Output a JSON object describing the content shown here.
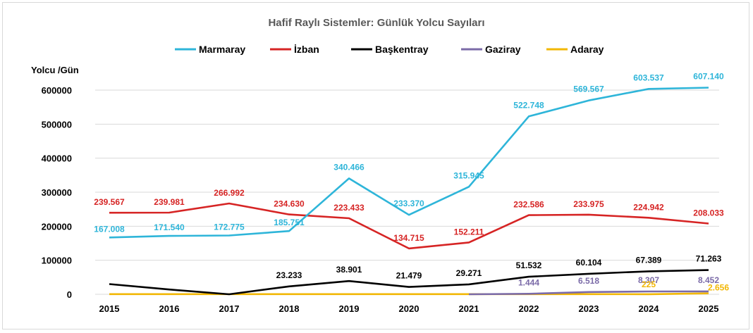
{
  "chart_data": {
    "type": "line",
    "title": "Hafif Raylı Sistemler: Günlük Yolcu Sayıları",
    "ylabel": "Yolcu /Gün",
    "xlabel": "",
    "ylim": [
      0,
      600000
    ],
    "yticks": [
      0,
      100000,
      200000,
      300000,
      400000,
      500000,
      600000
    ],
    "ytick_labels": [
      "0",
      "100000",
      "200000",
      "300000",
      "400000",
      "500000",
      "600000"
    ],
    "categories": [
      "2015",
      "2016",
      "2017",
      "2018",
      "2019",
      "2020",
      "2021",
      "2022",
      "2023",
      "2024",
      "2025"
    ],
    "grid": true,
    "legend_position": "top",
    "series": [
      {
        "name": "Marmaray",
        "color": "#2eb5d9",
        "values": [
          167008,
          171540,
          172775,
          185751,
          340466,
          233370,
          315945,
          522748,
          569567,
          603537,
          607140
        ],
        "labels": [
          "167.008",
          "171.540",
          "172.775",
          "185.751",
          "340.466",
          "233.370",
          "315.945",
          "522.748",
          "569.567",
          "603.537",
          "607.140"
        ]
      },
      {
        "name": "İzban",
        "color": "#d62424",
        "values": [
          239567,
          239981,
          266992,
          234630,
          223433,
          134715,
          152211,
          232586,
          233975,
          224942,
          208033
        ],
        "labels": [
          "239.567",
          "239.981",
          "266.992",
          "234.630",
          "223.433",
          "134.715",
          "152.211",
          "232.586",
          "233.975",
          "224.942",
          "208.033"
        ]
      },
      {
        "name": "Başkentray",
        "color": "#000000",
        "values": [
          30000,
          14000,
          0,
          23233,
          38901,
          21479,
          29271,
          51532,
          60104,
          67389,
          71263
        ],
        "labels": [
          "",
          "",
          "",
          "23.233",
          "38.901",
          "21.479",
          "29.271",
          "51.532",
          "60.104",
          "67.389",
          "71.263"
        ]
      },
      {
        "name": "Gaziray",
        "color": "#7b6ba8",
        "values": [
          null,
          null,
          null,
          null,
          null,
          null,
          0,
          1444,
          6518,
          8307,
          8452
        ],
        "labels": [
          "",
          "",
          "",
          "",
          "",
          "",
          "",
          "1.444",
          "6.518",
          "8.307",
          "8.452"
        ]
      },
      {
        "name": "Adaray",
        "color": "#f2b705",
        "values": [
          400,
          400,
          400,
          400,
          400,
          400,
          400,
          400,
          400,
          225,
          2656
        ],
        "labels": [
          "",
          "",
          "",
          "",
          "",
          "",
          "",
          "",
          "",
          "225",
          "2.656"
        ]
      }
    ]
  }
}
